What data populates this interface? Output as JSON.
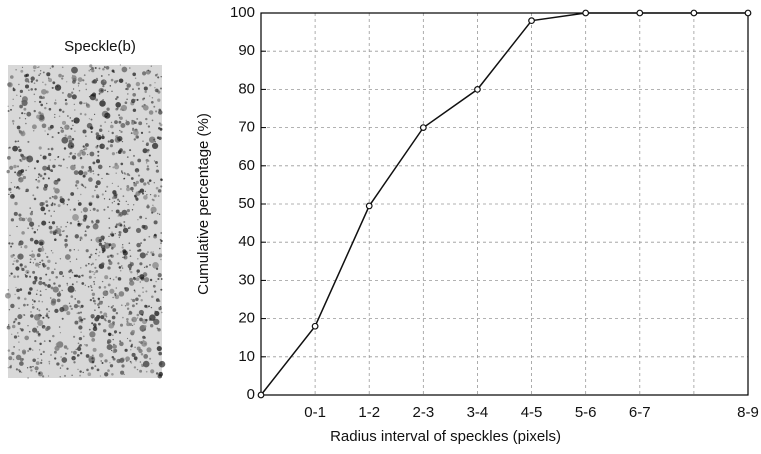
{
  "image_title": "Speckle(b)",
  "chart_data": {
    "type": "line",
    "x_label": "Radius interval of speckles (pixels)",
    "y_label": "Cumulative percentage (%)",
    "categories": [
      null,
      "0-1",
      "1-2",
      "2-3",
      "3-4",
      "4-5",
      "5-6",
      "6-7",
      null,
      "8-9"
    ],
    "values": [
      0,
      18,
      49.5,
      70,
      80,
      98,
      100,
      100,
      100,
      100
    ],
    "color": "#111111",
    "ylim": [
      0,
      100
    ],
    "yticks": [
      0,
      10,
      20,
      30,
      40,
      50,
      60,
      70,
      80,
      90,
      100
    ],
    "grid": true
  }
}
